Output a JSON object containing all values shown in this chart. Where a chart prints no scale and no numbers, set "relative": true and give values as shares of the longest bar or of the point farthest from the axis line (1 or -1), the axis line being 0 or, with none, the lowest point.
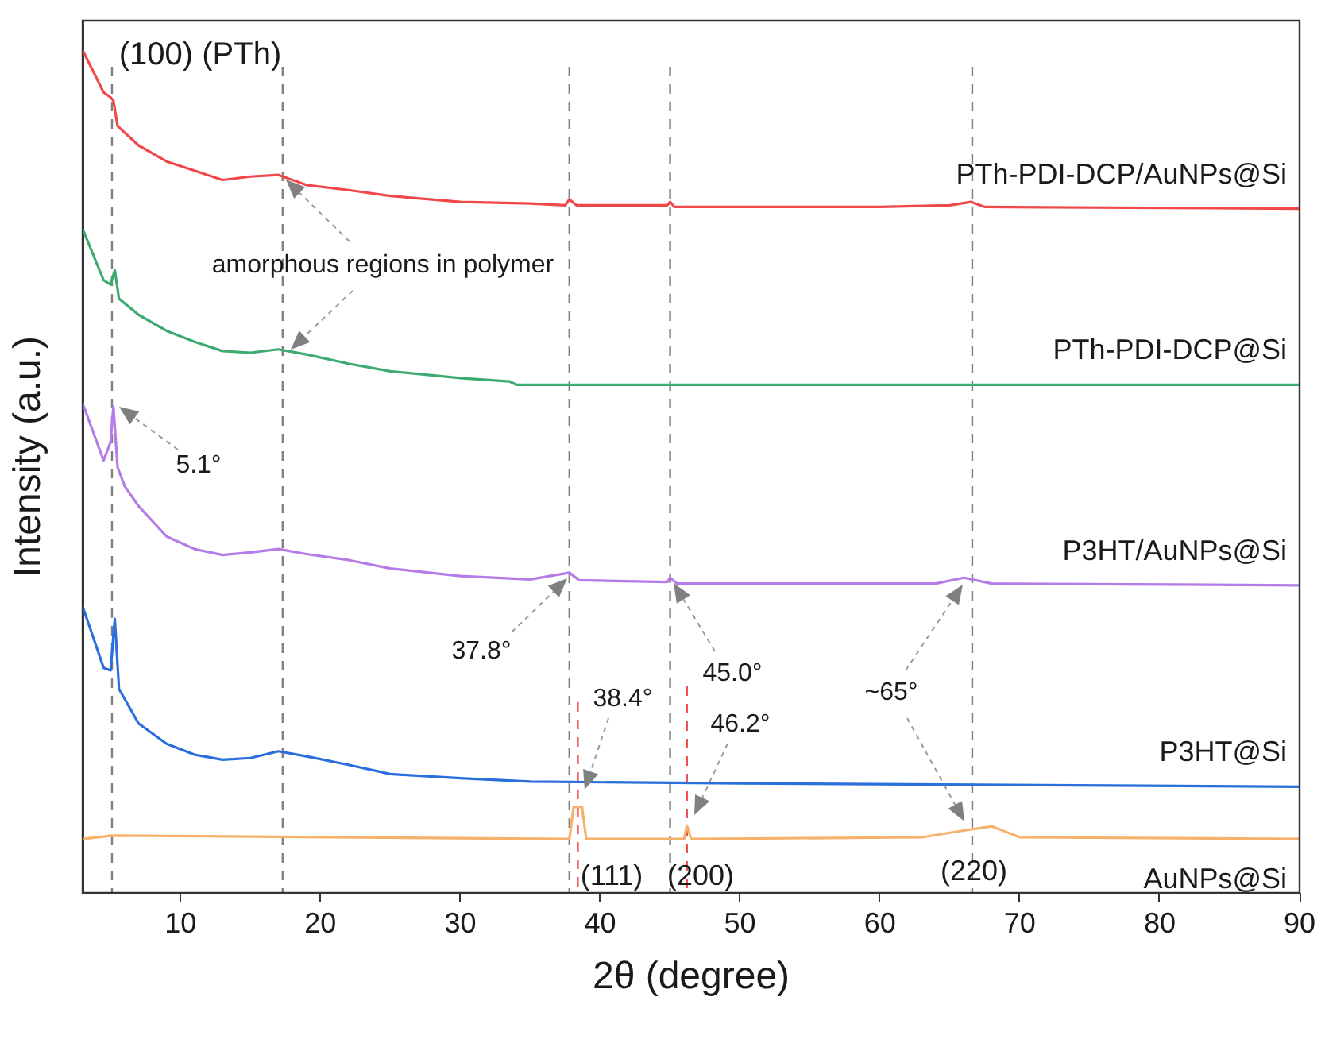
{
  "chart_data": {
    "type": "line",
    "relative": true,
    "xlabel": "2θ (degree)",
    "ylabel": "Intensity (a.u.)",
    "xlim": [
      3,
      90
    ],
    "xticks": [
      10,
      20,
      30,
      40,
      50,
      60,
      70,
      80,
      90
    ],
    "tick_labels": "x",
    "grid": false,
    "legend": false,
    "marker": "none",
    "line_style": "solid",
    "series": [
      {
        "name": "PTh-PDI-DCP/AuNPs@Si",
        "color": "#f04848",
        "x": [
          3,
          4.5,
          5,
          5.2,
          5.5,
          7,
          9,
          11,
          13,
          15,
          17,
          19,
          22,
          25,
          30,
          35,
          37.5,
          37.8,
          38.3,
          44.8,
          45,
          45.3,
          60,
          65,
          66.5,
          67.5,
          90
        ],
        "values": [
          1.0,
          0.95,
          0.944,
          0.94,
          0.91,
          0.887,
          0.868,
          0.857,
          0.846,
          0.85,
          0.852,
          0.84,
          0.834,
          0.827,
          0.82,
          0.818,
          0.816,
          0.823,
          0.816,
          0.816,
          0.82,
          0.814,
          0.814,
          0.816,
          0.82,
          0.814,
          0.812
        ]
      },
      {
        "name": "PTh-PDI-DCP@Si",
        "color": "#3daa70",
        "x": [
          3,
          4.5,
          5,
          5.3,
          5.6,
          7,
          9,
          11,
          13,
          15,
          17,
          19,
          22,
          25,
          30,
          33.5,
          34,
          50,
          90
        ],
        "values": [
          0.788,
          0.727,
          0.722,
          0.739,
          0.705,
          0.686,
          0.667,
          0.654,
          0.643,
          0.641,
          0.645,
          0.639,
          0.628,
          0.619,
          0.611,
          0.607,
          0.603,
          0.603,
          0.603
        ]
      },
      {
        "name": "P3HT/AuNPs@Si",
        "color": "#b57be6",
        "x": [
          3,
          4.5,
          5,
          5.2,
          5.5,
          6,
          7,
          9,
          11,
          13,
          15,
          17,
          19,
          22,
          25,
          30,
          35,
          37.8,
          38.5,
          44.8,
          45,
          45.5,
          64,
          66,
          68,
          90
        ],
        "values": [
          0.581,
          0.513,
          0.535,
          0.577,
          0.505,
          0.483,
          0.459,
          0.423,
          0.408,
          0.401,
          0.404,
          0.408,
          0.402,
          0.395,
          0.385,
          0.376,
          0.372,
          0.38,
          0.371,
          0.369,
          0.374,
          0.367,
          0.367,
          0.374,
          0.367,
          0.365
        ]
      },
      {
        "name": "P3HT@Si",
        "color": "#2a6fdb",
        "x": [
          3,
          4.5,
          5,
          5.3,
          5.6,
          7,
          9,
          11,
          13,
          15,
          17,
          19,
          22,
          25,
          30,
          35,
          50,
          90
        ],
        "values": [
          0.34,
          0.267,
          0.264,
          0.325,
          0.242,
          0.201,
          0.177,
          0.164,
          0.158,
          0.16,
          0.168,
          0.162,
          0.152,
          0.141,
          0.136,
          0.132,
          0.13,
          0.126
        ]
      },
      {
        "name": "AuNPs@Si",
        "color": "#f6b26b",
        "x": [
          3,
          5.1,
          37.8,
          38.1,
          38.7,
          39,
          46,
          46.2,
          46.5,
          63,
          66,
          68,
          70,
          90
        ],
        "values": [
          0.064,
          0.068,
          0.064,
          0.102,
          0.102,
          0.064,
          0.064,
          0.08,
          0.064,
          0.066,
          0.074,
          0.079,
          0.066,
          0.064
        ]
      }
    ],
    "ref_lines": [
      {
        "axis": "x",
        "value": 5.1,
        "color": "#808080",
        "line_style": "dashed"
      },
      {
        "axis": "x",
        "value": 17.3,
        "color": "#808080",
        "line_style": "dashed"
      },
      {
        "axis": "x",
        "value": 37.8,
        "color": "#808080",
        "line_style": "dashed"
      },
      {
        "axis": "x",
        "value": 45.0,
        "color": "#808080",
        "line_style": "dashed"
      },
      {
        "axis": "x",
        "value": 66.6,
        "color": "#808080",
        "line_style": "dashed"
      },
      {
        "axis": "x",
        "value": 38.4,
        "color": "#f04848",
        "line_style": "dashed"
      },
      {
        "axis": "x",
        "value": 46.2,
        "color": "#f04848",
        "line_style": "dashed"
      }
    ],
    "annotations": [
      "(100) (PTh)",
      "amorphous regions in polymer",
      "5.1°",
      "37.8°",
      "45.0°",
      "~65°",
      "38.4°",
      "46.2°",
      "(111)",
      "(200)",
      "(220)"
    ]
  }
}
